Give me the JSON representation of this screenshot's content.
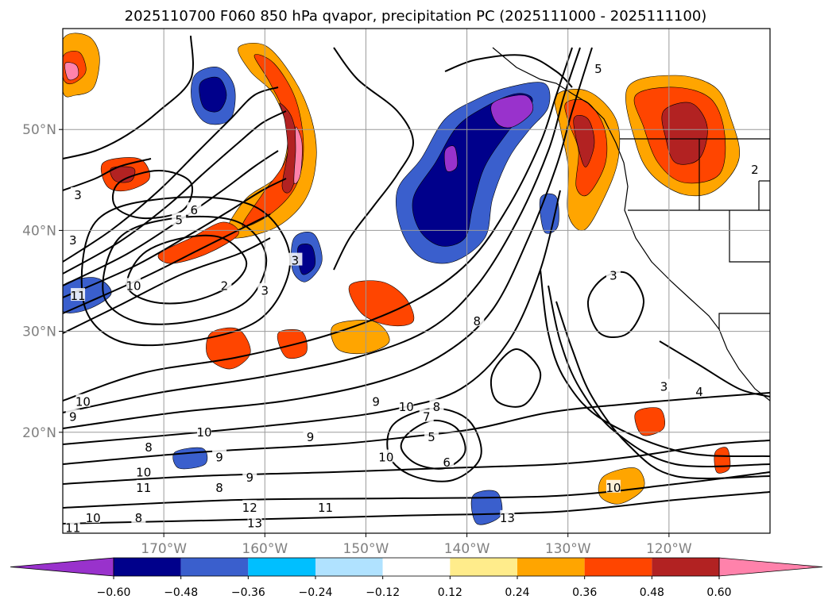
{
  "title": "2025110700 F060 850 hPa qvapor, precipitation PC (2025111000 - 2025111100)",
  "chart_data": {
    "type": "map",
    "projection": "plate-carree",
    "lon_range": [
      -180,
      -110
    ],
    "lat_range": [
      10,
      60
    ],
    "grid": true,
    "x_ticks": [
      {
        "value": -170,
        "label": "170°W"
      },
      {
        "value": -160,
        "label": "160°W"
      },
      {
        "value": -150,
        "label": "150°W"
      },
      {
        "value": -140,
        "label": "140°W"
      },
      {
        "value": -130,
        "label": "130°W"
      },
      {
        "value": -120,
        "label": "120°W"
      }
    ],
    "y_ticks": [
      {
        "value": 50,
        "label": "50°N"
      },
      {
        "value": 40,
        "label": "40°N"
      },
      {
        "value": 30,
        "label": "30°N"
      },
      {
        "value": 20,
        "label": "20°N"
      }
    ],
    "colorbar": {
      "position": "bottom",
      "extend": "both",
      "bounds": [
        -0.6,
        -0.48,
        -0.36,
        -0.24,
        -0.12,
        0.12,
        0.24,
        0.36,
        0.48,
        0.6
      ],
      "tick_labels": [
        "−0.60",
        "−0.48",
        "−0.36",
        "−0.24",
        "−0.12",
        "0.12",
        "0.24",
        "0.36",
        "0.48",
        "0.60"
      ],
      "colors": [
        "#9932cc",
        "#00008b",
        "#3a5fcd",
        "#00bfff",
        "#b0e2ff",
        "#ffffff",
        "#ffec8b",
        "#ffa500",
        "#ff4500",
        "#b22222",
        "#ff82ab"
      ]
    },
    "contour_labels": [
      {
        "text": "3",
        "lon": -178.5,
        "lat": 43.5
      },
      {
        "text": "5",
        "lon": -168.5,
        "lat": 41.0
      },
      {
        "text": "6",
        "lon": -167.0,
        "lat": 42.0
      },
      {
        "text": "3",
        "lon": -179.0,
        "lat": 39.0
      },
      {
        "text": "10",
        "lon": -173.0,
        "lat": 34.5
      },
      {
        "text": "2",
        "lon": -164.0,
        "lat": 34.5
      },
      {
        "text": "3",
        "lon": -160.0,
        "lat": 34.0
      },
      {
        "text": "3",
        "lon": -157.0,
        "lat": 37.0
      },
      {
        "text": "11",
        "lon": -178.5,
        "lat": 33.5
      },
      {
        "text": "10",
        "lon": -178.0,
        "lat": 23.0
      },
      {
        "text": "9",
        "lon": -179.0,
        "lat": 21.5
      },
      {
        "text": "10",
        "lon": -166.0,
        "lat": 20.0
      },
      {
        "text": "8",
        "lon": -171.5,
        "lat": 18.5
      },
      {
        "text": "9",
        "lon": -164.5,
        "lat": 17.5
      },
      {
        "text": "10",
        "lon": -172.0,
        "lat": 16.0
      },
      {
        "text": "11",
        "lon": -172.0,
        "lat": 14.5
      },
      {
        "text": "8",
        "lon": -164.5,
        "lat": 14.5
      },
      {
        "text": "9",
        "lon": -161.5,
        "lat": 15.5
      },
      {
        "text": "12",
        "lon": -161.5,
        "lat": 12.5
      },
      {
        "text": "13",
        "lon": -161.0,
        "lat": 11.0
      },
      {
        "text": "10",
        "lon": -177.0,
        "lat": 11.5
      },
      {
        "text": "8",
        "lon": -172.5,
        "lat": 11.5
      },
      {
        "text": "11",
        "lon": -179.0,
        "lat": 10.5
      },
      {
        "text": "11",
        "lon": -154.0,
        "lat": 12.5
      },
      {
        "text": "9",
        "lon": -155.5,
        "lat": 19.5
      },
      {
        "text": "10",
        "lon": -148.0,
        "lat": 17.5
      },
      {
        "text": "9",
        "lon": -149.0,
        "lat": 23.0
      },
      {
        "text": "10",
        "lon": -146.0,
        "lat": 22.5
      },
      {
        "text": "7",
        "lon": -144.0,
        "lat": 21.5
      },
      {
        "text": "8",
        "lon": -143.0,
        "lat": 22.5
      },
      {
        "text": "5",
        "lon": -143.5,
        "lat": 19.5
      },
      {
        "text": "6",
        "lon": -142.0,
        "lat": 17.0
      },
      {
        "text": "8",
        "lon": -139.0,
        "lat": 31.0
      },
      {
        "text": "13",
        "lon": -136.0,
        "lat": 11.5
      },
      {
        "text": "10",
        "lon": -125.5,
        "lat": 14.5
      },
      {
        "text": "3",
        "lon": -125.5,
        "lat": 35.5
      },
      {
        "text": "3",
        "lon": -120.5,
        "lat": 24.5
      },
      {
        "text": "4",
        "lon": -117.0,
        "lat": 24.0
      },
      {
        "text": "5",
        "lon": -127.0,
        "lat": 56.0
      },
      {
        "text": "2",
        "lon": -111.5,
        "lat": 46.0
      }
    ]
  }
}
